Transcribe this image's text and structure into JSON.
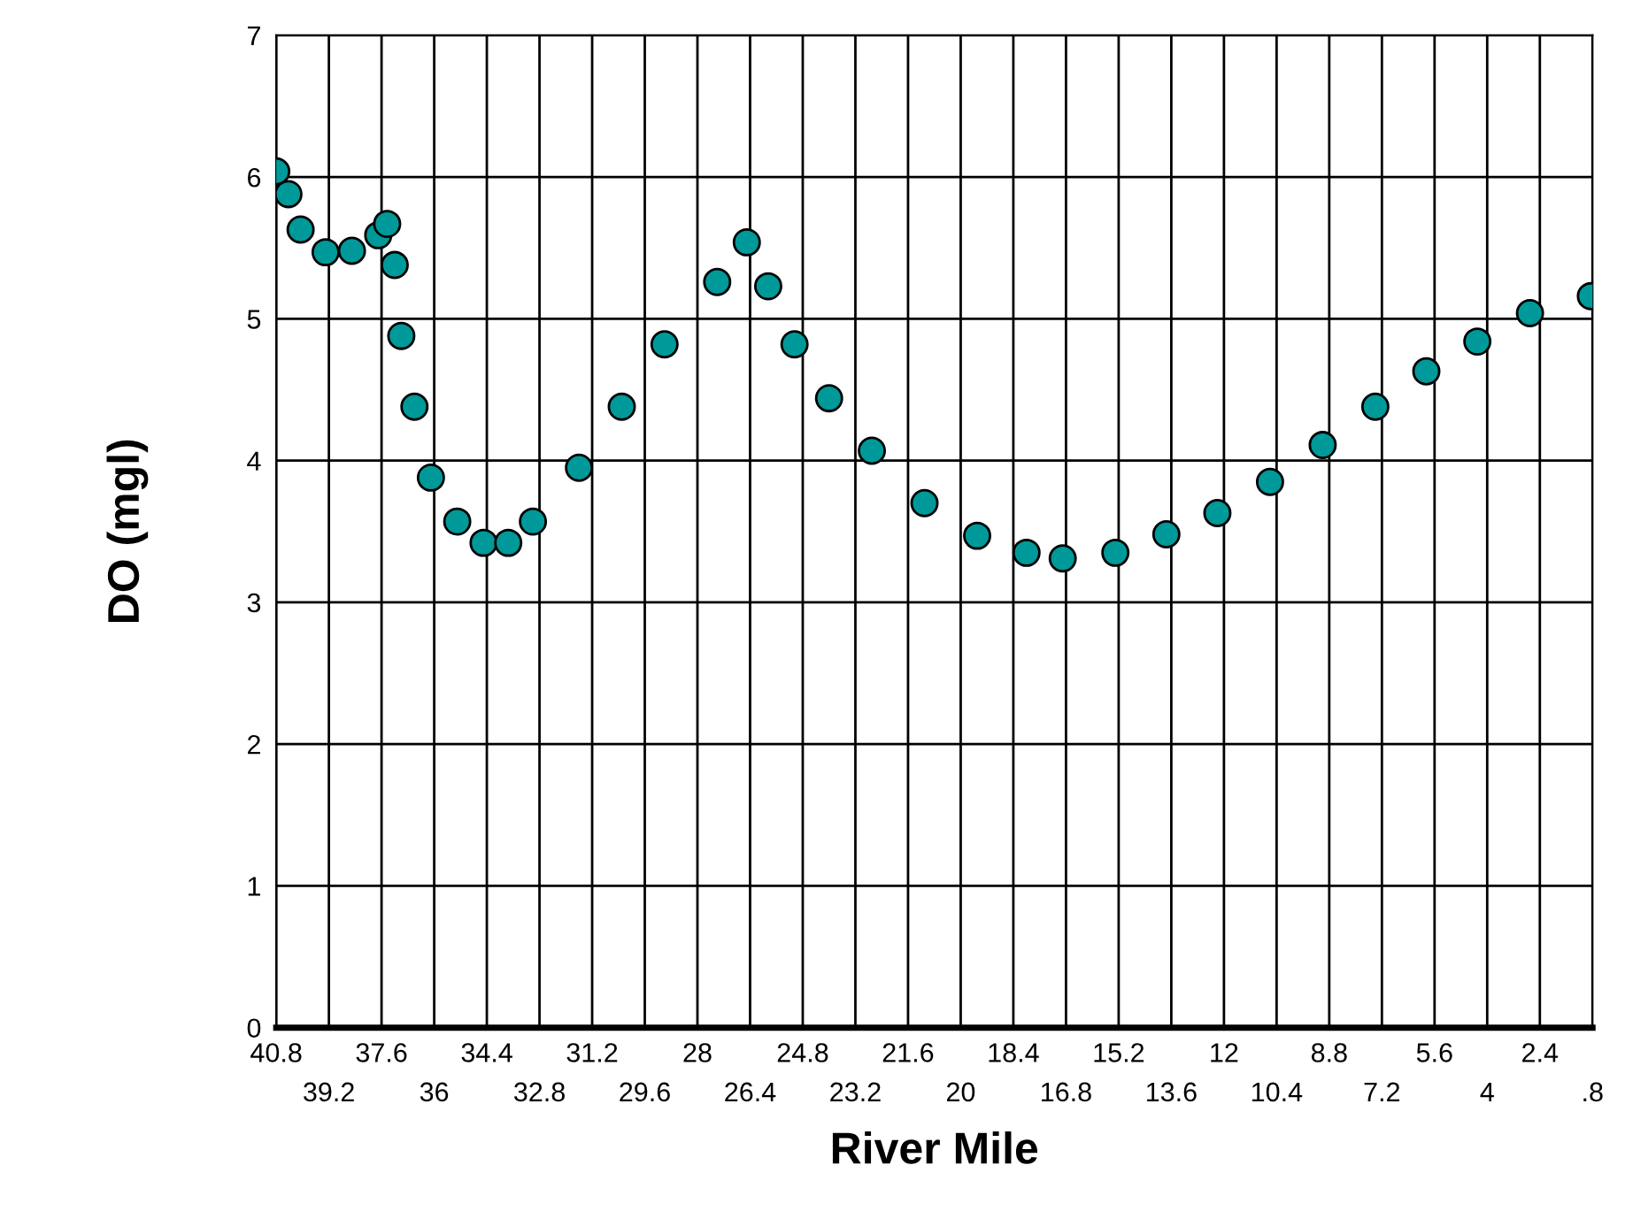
{
  "chart_data": {
    "type": "scatter",
    "xlabel": "River Mile",
    "ylabel": "DO (mgl)",
    "x": [
      40.8,
      40.43,
      40.06,
      39.3,
      38.5,
      37.7,
      37.43,
      37.2,
      37.0,
      36.6,
      36.1,
      35.3,
      34.5,
      33.75,
      33.0,
      31.6,
      30.3,
      29.0,
      27.4,
      26.5,
      25.85,
      25.05,
      24.0,
      22.7,
      21.1,
      19.5,
      18.0,
      16.9,
      15.3,
      13.75,
      12.2,
      10.6,
      9.0,
      7.4,
      5.85,
      4.3,
      2.7,
      0.85
    ],
    "series": [
      {
        "color": "#009999",
        "values": [
          6.04,
          5.88,
          5.63,
          5.47,
          5.48,
          5.59,
          5.67,
          5.38,
          4.88,
          4.38,
          3.88,
          3.57,
          3.42,
          3.42,
          3.57,
          3.95,
          4.38,
          4.82,
          5.26,
          5.54,
          5.23,
          4.82,
          4.44,
          4.07,
          3.7,
          3.47,
          3.35,
          3.31,
          3.35,
          3.48,
          3.63,
          3.85,
          4.11,
          4.38,
          4.63,
          4.84,
          5.04,
          5.16
        ]
      }
    ],
    "xlim": [
      40.8,
      0.8
    ],
    "xticks": [
      40.8,
      37.6,
      34.4,
      31.2,
      28,
      24.8,
      21.6,
      18.4,
      15.2,
      12,
      8.8,
      5.6,
      2.4
    ],
    "x2lim": [
      40.8,
      0.8
    ],
    "x2ticks": [
      39.2,
      36,
      32.8,
      29.6,
      26.4,
      23.2,
      20,
      16.8,
      13.6,
      10.4,
      7.2,
      4,
      {
        "value": 0.8,
        "label": ".8"
      }
    ],
    "ylim": [
      0,
      7
    ],
    "yticks": [
      0,
      1,
      2,
      3,
      4,
      5,
      6,
      7
    ],
    "grid": true,
    "marker": "circle"
  }
}
